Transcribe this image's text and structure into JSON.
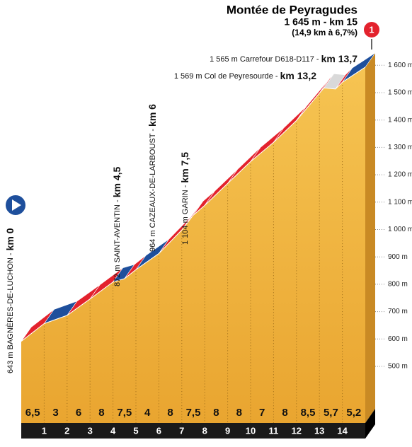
{
  "chart_data": {
    "type": "profile",
    "title": "Montée de Peyragudes",
    "subtitle": "1 645 m - km 15",
    "note": "(14,9 km à 6,7%)",
    "finish_marker": "1",
    "x": [
      0,
      1,
      2,
      3,
      4,
      4.5,
      5,
      6,
      7,
      7.5,
      8,
      9,
      10,
      11,
      12,
      13,
      13.2,
      13.7,
      14,
      15
    ],
    "values": [
      643,
      708,
      738,
      798,
      860,
      872,
      905,
      964,
      1050,
      1104,
      1140,
      1220,
      1300,
      1370,
      1450,
      1550,
      1569,
      1565,
      1590,
      1645
    ],
    "xlim": [
      0,
      15
    ],
    "ylim": [
      500,
      1700
    ],
    "xticks": [
      1,
      2,
      3,
      4,
      5,
      6,
      7,
      8,
      9,
      10,
      11,
      12,
      13,
      14
    ],
    "yticks": [
      {
        "value": 500,
        "label": "500 m"
      },
      {
        "value": 600,
        "label": "600 m"
      },
      {
        "value": 700,
        "label": "700 m"
      },
      {
        "value": 800,
        "label": "800 m"
      },
      {
        "value": 900,
        "label": "900 m"
      },
      {
        "value": 1000,
        "label": "1 000 m"
      },
      {
        "value": 1100,
        "label": "1 100 m"
      },
      {
        "value": 1200,
        "label": "1 200 m"
      },
      {
        "value": 1300,
        "label": "1 300 m"
      },
      {
        "value": 1400,
        "label": "1 400 m"
      },
      {
        "value": 1500,
        "label": "1 500 m"
      },
      {
        "value": 1600,
        "label": "1 600 m"
      }
    ],
    "gradients": {
      "values": [
        6.5,
        3,
        6,
        8,
        7.5,
        4,
        8,
        7.5,
        8,
        8,
        7,
        8,
        8.5,
        5.7,
        5.2
      ],
      "value_labels": [
        "6,5",
        "3",
        "6",
        "8",
        "7,5",
        "4",
        "8",
        "7,5",
        "8",
        "8",
        "7",
        "8",
        "8,5",
        "5,7",
        "5,2"
      ]
    },
    "annotations": [
      {
        "text": "643 m BAGNÈRES-DE-LUCHON - ",
        "km": "km 0"
      },
      {
        "text": "872 m SAINT-AVENTIN - ",
        "km": "km 4,5"
      },
      {
        "text": "964 m CAZEAUX-DE-LARBOUST - ",
        "km": "km 6"
      },
      {
        "text": "1 104 m GARIN - ",
        "km": "km 7,5"
      },
      {
        "text": "1 565 m Carrefour D618-D117 - ",
        "km": "km 13,7"
      },
      {
        "text": "1 569 m Col de Peyresourde - ",
        "km": "km 13,2"
      }
    ],
    "colors": {
      "steep": "#e3222d",
      "moderate": "#1e4f9c",
      "flat": "#d9d9d9",
      "terrain": "#f0b03a",
      "base": "#1a1a1a"
    }
  }
}
